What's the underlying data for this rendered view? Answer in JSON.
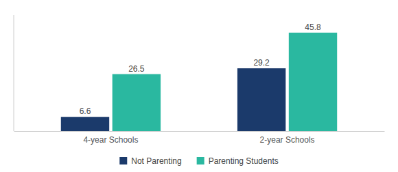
{
  "chart_data": {
    "type": "bar",
    "categories": [
      "4-year Schools",
      "2-year Schools"
    ],
    "series": [
      {
        "name": "Not Parenting",
        "color": "#1b3a6b",
        "values": [
          6.6,
          29.2
        ]
      },
      {
        "name": "Parenting Students",
        "color": "#2ab8a0",
        "values": [
          26.5,
          45.8
        ]
      }
    ],
    "ylim": [
      0,
      54
    ],
    "data_labels": true,
    "tick_labels": "x",
    "legend": "bottom",
    "grid": false
  }
}
